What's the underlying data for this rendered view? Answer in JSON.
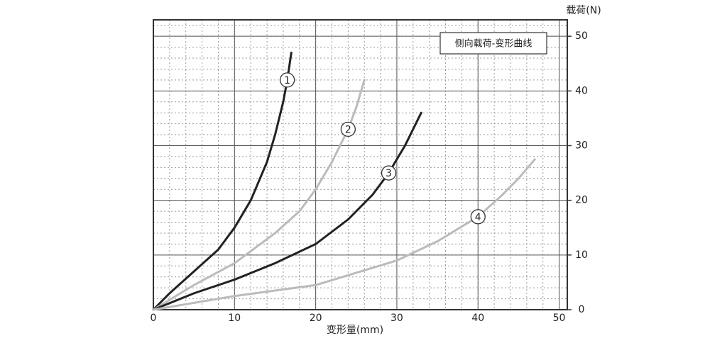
{
  "chart_data": {
    "type": "line",
    "legend_title": "侧向载荷-变形曲线",
    "x_label": "变形量(mm)",
    "y_label": "载荷(N)",
    "xlim": [
      0,
      51
    ],
    "ylim": [
      0,
      53
    ],
    "xticks": [
      0,
      10,
      20,
      30,
      40,
      50
    ],
    "yticks": [
      0,
      10,
      20,
      30,
      40,
      50
    ],
    "minor_step": 2,
    "grid": true,
    "series": [
      {
        "name": "1",
        "color": "#222222",
        "x": [
          0,
          2,
          5,
          8,
          10,
          12,
          14,
          15,
          16,
          16.5,
          17
        ],
        "values": [
          0,
          3,
          7,
          11,
          15,
          20,
          27,
          32,
          38,
          42,
          47
        ]
      },
      {
        "name": "2",
        "color": "#bbbbbb",
        "x": [
          0,
          5,
          10,
          15,
          18,
          20,
          22,
          24,
          25,
          26
        ],
        "values": [
          0,
          4.5,
          8.5,
          14,
          18,
          22,
          27,
          33,
          37,
          42
        ]
      },
      {
        "name": "3",
        "color": "#222222",
        "x": [
          0,
          5,
          10,
          15,
          20,
          24,
          27,
          29,
          31,
          33
        ],
        "values": [
          0,
          3,
          5.5,
          8.5,
          12,
          16.5,
          21,
          25,
          30,
          36
        ]
      },
      {
        "name": "4",
        "color": "#bbbbbb",
        "x": [
          0,
          10,
          20,
          30,
          35,
          40,
          43,
          45,
          47
        ],
        "values": [
          0,
          2.5,
          4.5,
          9,
          12.5,
          17,
          21,
          24,
          27.5
        ]
      }
    ]
  }
}
